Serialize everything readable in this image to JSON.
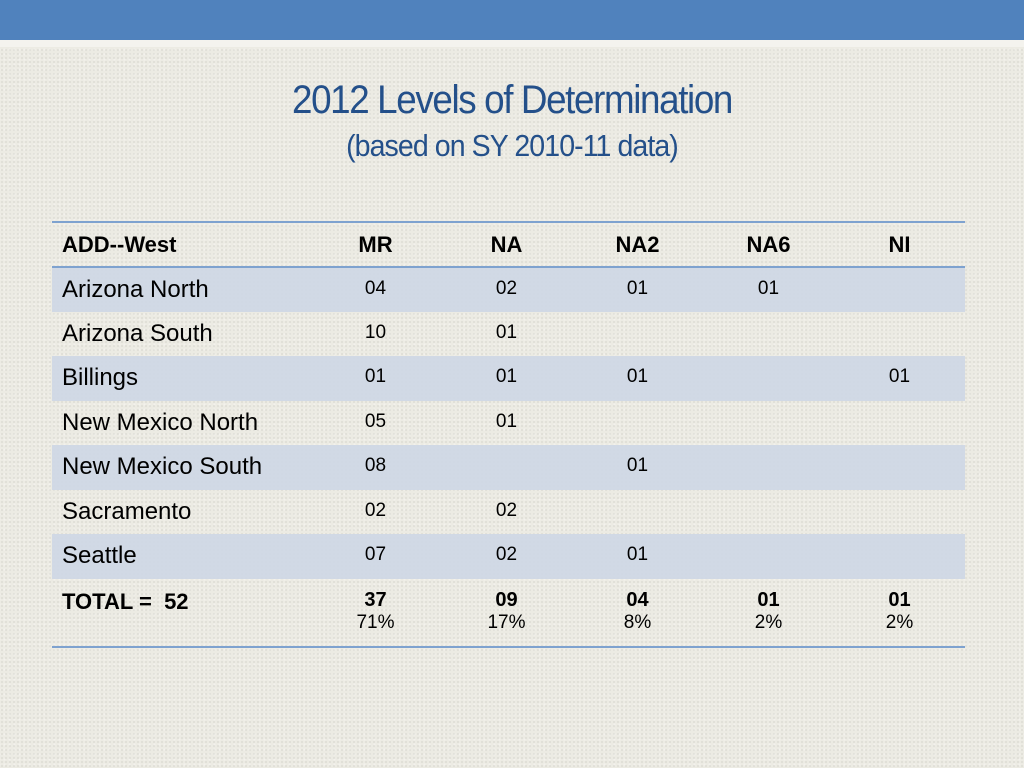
{
  "title": "2012 Levels of Determination",
  "subtitle": "(based on SY 2010-11 data)",
  "table": {
    "headers": [
      "ADD--West",
      "MR",
      "NA",
      "NA2",
      "NA6",
      "NI"
    ],
    "rows": [
      {
        "name": "Arizona North",
        "values": [
          "04",
          "02",
          "01",
          "01",
          ""
        ]
      },
      {
        "name": "Arizona South",
        "values": [
          "10",
          "01",
          "",
          "",
          ""
        ]
      },
      {
        "name": "Billings",
        "values": [
          "01",
          "01",
          "01",
          "",
          "01"
        ]
      },
      {
        "name": "New Mexico North",
        "values": [
          "05",
          "01",
          "",
          "",
          ""
        ]
      },
      {
        "name": "New Mexico South",
        "values": [
          "08",
          "",
          "01",
          "",
          ""
        ]
      },
      {
        "name": "Sacramento",
        "values": [
          "02",
          "02",
          "",
          "",
          ""
        ]
      },
      {
        "name": "Seattle",
        "values": [
          "07",
          "02",
          "01",
          "",
          ""
        ]
      }
    ],
    "total": {
      "label": "TOTAL =  52",
      "counts": [
        "37",
        "09",
        "04",
        "01",
        "01"
      ],
      "percents": [
        "71%",
        "17%",
        "8%",
        "2%",
        "2%"
      ]
    }
  },
  "colors": {
    "header_band": "#5082bd",
    "title": "#24508a",
    "row_shade": "#ced7e5",
    "rule": "#7ea2cf"
  }
}
